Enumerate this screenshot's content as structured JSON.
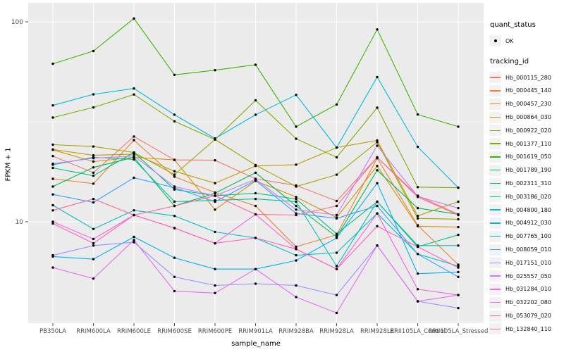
{
  "chart_data": {
    "type": "line",
    "title": "",
    "xlabel": "sample_name",
    "ylabel": "FPKM + 1",
    "y_scale": "log10",
    "ylim": [
      3.0,
      110
    ],
    "y_ticks": [
      100,
      10
    ],
    "y_minor": [
      31.62,
      3.162
    ],
    "grid": true,
    "legend_position": "right",
    "marker": {
      "shape": "point",
      "color": "#000000"
    },
    "panel_bg": "#EBEBEB",
    "grid_color": "#FFFFFF",
    "categories": [
      "PB350LA",
      "RRIM600LA",
      "RRIM600LE",
      "RRIM600SE",
      "RRIM600PE",
      "RRIM901LA",
      "RRIM928BA",
      "RRIM928LA",
      "RRIM928LE",
      "RRII105LA_Control",
      "RRII105LA_Stressed"
    ],
    "legend": {
      "quant_title": "quant_status",
      "quant_items": [
        {
          "label": "OK"
        }
      ],
      "series_title": "tracking_id"
    },
    "series": [
      {
        "name": "Hb_000115_280",
        "color": "#F8766D",
        "values": [
          21.3,
          17.6,
          26.7,
          20.4,
          20.3,
          16.4,
          15.2,
          12.7,
          21.0,
          13.5,
          10.9
        ]
      },
      {
        "name": "Hb_000445_140",
        "color": "#EA8331",
        "values": [
          16.4,
          15.5,
          25.6,
          16.8,
          14.0,
          12.0,
          7.5,
          8.6,
          20.8,
          9.6,
          6.1
        ]
      },
      {
        "name": "Hb_000457_230",
        "color": "#D89000",
        "values": [
          22.9,
          20.0,
          21.0,
          20.4,
          11.5,
          16.0,
          13.3,
          10.5,
          19.0,
          9.5,
          9.4
        ]
      },
      {
        "name": "Hb_000864_030",
        "color": "#C09B00",
        "values": [
          23.0,
          21.5,
          21.8,
          17.9,
          15.6,
          19.0,
          19.3,
          23.5,
          25.5,
          10.7,
          12.6
        ]
      },
      {
        "name": "Hb_000922_020",
        "color": "#A3A500",
        "values": [
          24.3,
          23.8,
          22.2,
          17.2,
          25.8,
          19.2,
          15.0,
          17.2,
          25.0,
          10.4,
          10.3
        ]
      },
      {
        "name": "Hb_001377_110",
        "color": "#7CAE00",
        "values": [
          33.2,
          37.3,
          43.3,
          31.8,
          25.8,
          40.5,
          26.0,
          21.0,
          37.2,
          14.9,
          14.8
        ]
      },
      {
        "name": "Hb_001619_050",
        "color": "#39B600",
        "values": [
          61.7,
          71.4,
          104.0,
          54.3,
          57.3,
          61.0,
          29.9,
          38.6,
          91.6,
          34.4,
          29.9
        ]
      },
      {
        "name": "Hb_001789_190",
        "color": "#00BB4E",
        "values": [
          15.0,
          18.7,
          21.0,
          12.0,
          13.9,
          17.6,
          12.0,
          8.4,
          18.1,
          11.7,
          10.9
        ]
      },
      {
        "name": "Hb_002311_310",
        "color": "#00BF7D",
        "values": [
          18.6,
          17.0,
          22.2,
          14.5,
          13.5,
          13.9,
          13.0,
          8.7,
          12.6,
          7.5,
          8.6
        ]
      },
      {
        "name": "Hb_003186_020",
        "color": "#00C1A3",
        "values": [
          19.3,
          21.0,
          20.5,
          12.6,
          12.8,
          13.0,
          12.6,
          6.0,
          12.6,
          7.6,
          7.6
        ]
      },
      {
        "name": "Hb_004800_180",
        "color": "#00BFC4",
        "values": [
          12.1,
          9.2,
          11.4,
          10.7,
          8.9,
          8.3,
          6.8,
          7.0,
          11.0,
          6.9,
          6.0
        ]
      },
      {
        "name": "Hb_004912_030",
        "color": "#00BAE0",
        "values": [
          38.2,
          43.4,
          46.4,
          34.3,
          26.1,
          34.3,
          43.1,
          23.5,
          52.9,
          23.7,
          14.8
        ]
      },
      {
        "name": "Hb_007765_100",
        "color": "#00B0F6",
        "values": [
          6.7,
          6.5,
          8.4,
          6.6,
          5.8,
          5.8,
          6.4,
          8.3,
          15.6,
          5.5,
          5.6
        ]
      },
      {
        "name": "Hb_008059_010",
        "color": "#35A2FF",
        "values": [
          13.7,
          12.5,
          16.6,
          14.8,
          12.6,
          16.1,
          11.0,
          10.4,
          12.0,
          6.9,
          5.3
        ]
      },
      {
        "name": "Hb_017151_010",
        "color": "#9590FF",
        "values": [
          6.8,
          7.6,
          7.9,
          5.3,
          4.8,
          4.9,
          4.8,
          4.3,
          7.6,
          4.0,
          3.7
        ]
      },
      {
        "name": "Hb_025557_050",
        "color": "#C77CFF",
        "values": [
          19.5,
          20.8,
          21.3,
          15.0,
          13.5,
          16.3,
          11.5,
          10.8,
          24.0,
          13.4,
          11.7
        ]
      },
      {
        "name": "Hb_031284_010",
        "color": "#E76BF3",
        "values": [
          5.9,
          5.2,
          8.1,
          4.5,
          4.4,
          5.8,
          4.2,
          3.5,
          7.6,
          4.0,
          4.3
        ]
      },
      {
        "name": "Hb_032202_080",
        "color": "#FA62DB",
        "values": [
          10.0,
          8.2,
          10.8,
          9.3,
          7.8,
          10.9,
          7.3,
          5.8,
          11.0,
          4.6,
          4.3
        ]
      },
      {
        "name": "Hb_053079_020",
        "color": "#FF62BC",
        "values": [
          9.8,
          7.8,
          10.8,
          9.3,
          7.8,
          8.3,
          7.3,
          5.8,
          9.5,
          7.5,
          5.9
        ]
      },
      {
        "name": "Hb_132840_110",
        "color": "#FF6A98",
        "values": [
          11.4,
          13.0,
          10.8,
          12.0,
          13.5,
          10.9,
          10.8,
          12.0,
          21.0,
          13.3,
          10.8
        ]
      }
    ]
  }
}
